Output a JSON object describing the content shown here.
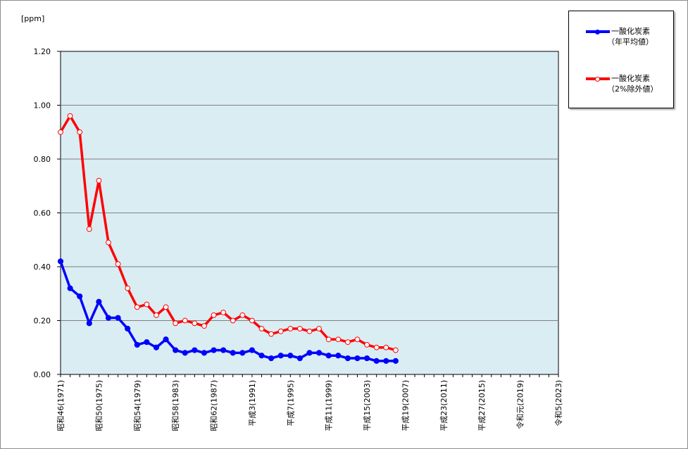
{
  "chart_data": {
    "type": "line",
    "unit_label": "[ppm]",
    "ylim": [
      0,
      1.2
    ],
    "yticks": [
      "0.00",
      "0.20",
      "0.40",
      "0.60",
      "0.80",
      "1.00",
      "1.20"
    ],
    "ytick_values": [
      0,
      0.2,
      0.4,
      0.6,
      0.8,
      1.0,
      1.2
    ],
    "x_range": [
      1971,
      2023
    ],
    "xtick_years": [
      1971,
      1975,
      1979,
      1983,
      1987,
      1991,
      1995,
      1999,
      2003,
      2007,
      2011,
      2015,
      2019,
      2023
    ],
    "xticks": [
      "昭和46(1971)",
      "昭和50(1975)",
      "昭和54(1979)",
      "昭和58(1983)",
      "昭和62(1987)",
      "平成3(1991)",
      "平成7(1995)",
      "平成11(1999)",
      "平成15(2003)",
      "平成19(2007)",
      "平成23(2011)",
      "平成27(2015)",
      "令和元(2019)",
      "令和5(2023)"
    ],
    "grid": true,
    "plot_background": "#daedf3",
    "legend_position": "top-right",
    "x": [
      1971,
      1972,
      1973,
      1974,
      1975,
      1976,
      1977,
      1978,
      1979,
      1980,
      1981,
      1982,
      1983,
      1984,
      1985,
      1986,
      1987,
      1988,
      1989,
      1990,
      1991,
      1992,
      1993,
      1994,
      1995,
      1996,
      1997,
      1998,
      1999,
      2000,
      2001,
      2002,
      2003,
      2004,
      2005,
      2006
    ],
    "series": [
      {
        "name": "一酸化炭素",
        "name_sub": "（年平均値）",
        "color": "#0000ff",
        "marker": "filled-circle",
        "values": [
          0.42,
          0.32,
          0.29,
          0.19,
          0.27,
          0.21,
          0.21,
          0.17,
          0.11,
          0.12,
          0.1,
          0.13,
          0.09,
          0.08,
          0.09,
          0.08,
          0.09,
          0.09,
          0.08,
          0.08,
          0.09,
          0.07,
          0.06,
          0.07,
          0.07,
          0.06,
          0.08,
          0.08,
          0.07,
          0.07,
          0.06,
          0.06,
          0.06,
          0.05,
          0.05,
          0.05
        ]
      },
      {
        "name": "一酸化炭素",
        "name_sub": "（2%除外値）",
        "color": "#ff0000",
        "marker": "open-circle",
        "values": [
          0.9,
          0.96,
          0.9,
          0.54,
          0.72,
          0.49,
          0.41,
          0.32,
          0.25,
          0.26,
          0.22,
          0.25,
          0.19,
          0.2,
          0.19,
          0.18,
          0.22,
          0.23,
          0.2,
          0.22,
          0.2,
          0.17,
          0.15,
          0.16,
          0.17,
          0.17,
          0.16,
          0.17,
          0.13,
          0.13,
          0.12,
          0.13,
          0.11,
          0.1,
          0.1,
          0.09
        ]
      }
    ]
  }
}
